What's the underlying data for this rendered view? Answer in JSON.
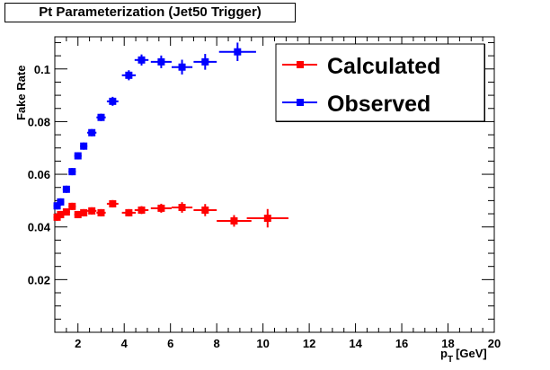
{
  "chart_data": {
    "type": "scatter",
    "title": "Pt Parameterization (Jet50 Trigger)",
    "xlabel": "p_T [GeV]",
    "xlabel_main": "p",
    "xlabel_sub": "T",
    "xlabel_unit": "[GeV]",
    "ylabel": "Fake Rate",
    "xlim": [
      1,
      20
    ],
    "ylim": [
      0,
      0.1122
    ],
    "xticks": [
      2,
      4,
      6,
      8,
      10,
      12,
      14,
      16,
      18,
      20
    ],
    "xtick_labels": [
      "2",
      "4",
      "6",
      "8",
      "10",
      "12",
      "14",
      "16",
      "18",
      "20"
    ],
    "yticks": [
      0.02,
      0.04,
      0.06,
      0.08,
      0.1
    ],
    "ytick_labels": [
      "0.02",
      "0.04",
      "0.06",
      "0.08",
      "0.1"
    ],
    "grid": false,
    "legend_position": "top-right",
    "series": [
      {
        "name": "Calculated",
        "color": "#ff0000",
        "x": [
          1.1,
          1.25,
          1.5,
          1.75,
          2.0,
          2.25,
          2.6,
          3.0,
          3.5,
          4.2,
          4.75,
          5.6,
          6.5,
          7.5,
          8.75,
          10.2
        ],
        "xerr": [
          0.1,
          0.1,
          0.12,
          0.12,
          0.12,
          0.12,
          0.2,
          0.2,
          0.25,
          0.3,
          0.3,
          0.45,
          0.45,
          0.5,
          0.75,
          0.9
        ],
        "y": [
          0.0437,
          0.0447,
          0.0457,
          0.0478,
          0.0447,
          0.0454,
          0.0461,
          0.0454,
          0.0488,
          0.0454,
          0.0464,
          0.0471,
          0.0474,
          0.0464,
          0.0423,
          0.0433
        ],
        "yerr": [
          0.0008,
          0.0008,
          0.0008,
          0.0009,
          0.0009,
          0.001,
          0.001,
          0.0011,
          0.0014,
          0.0012,
          0.0015,
          0.0017,
          0.002,
          0.0023,
          0.0022,
          0.0035
        ]
      },
      {
        "name": "Observed",
        "color": "#0000ff",
        "x": [
          1.1,
          1.25,
          1.5,
          1.75,
          2.0,
          2.25,
          2.6,
          3.0,
          3.5,
          4.2,
          4.75,
          5.6,
          6.5,
          7.5,
          8.9
        ],
        "xerr": [
          0.1,
          0.1,
          0.12,
          0.12,
          0.12,
          0.12,
          0.2,
          0.2,
          0.25,
          0.3,
          0.3,
          0.45,
          0.45,
          0.5,
          0.8
        ],
        "y": [
          0.048,
          0.0495,
          0.0543,
          0.061,
          0.067,
          0.0707,
          0.0758,
          0.0816,
          0.0877,
          0.0976,
          0.1034,
          0.1027,
          0.1007,
          0.1027,
          0.1065
        ],
        "yerr": [
          0.0008,
          0.0008,
          0.0009,
          0.001,
          0.001,
          0.0011,
          0.0012,
          0.0014,
          0.0017,
          0.0019,
          0.0021,
          0.0024,
          0.0028,
          0.003,
          0.0035
        ]
      }
    ]
  }
}
